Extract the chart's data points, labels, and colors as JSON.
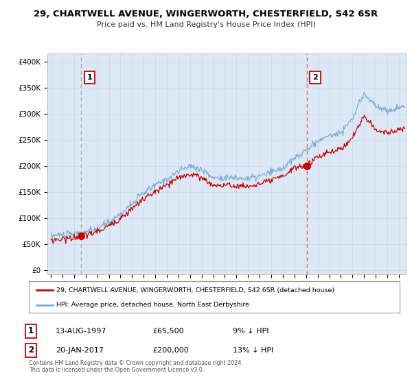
{
  "title_line1": "29, CHARTWELL AVENUE, WINGERWORTH, CHESTERFIELD, S42 6SR",
  "title_line2": "Price paid vs. HM Land Registry's House Price Index (HPI)",
  "yticks": [
    0,
    50000,
    100000,
    150000,
    200000,
    250000,
    300000,
    350000,
    400000
  ],
  "ytick_labels": [
    "£0",
    "£50K",
    "£100K",
    "£150K",
    "£200K",
    "£250K",
    "£300K",
    "£350K",
    "£400K"
  ],
  "ylim": [
    -8000,
    415000
  ],
  "xlim_start": 1994.7,
  "xlim_end": 2025.6,
  "purchase1_date": 1997.617,
  "purchase1_price": 65500,
  "purchase1_label": "1",
  "purchase2_date": 2017.055,
  "purchase2_price": 200000,
  "purchase2_label": "2",
  "legend_line1": "29, CHARTWELL AVENUE, WINGERWORTH, CHESTERFIELD, S42 6SR (detached house)",
  "legend_line2": "HPI: Average price, detached house, North East Derbyshire",
  "table_row1_label": "1",
  "table_row1_date": "13-AUG-1997",
  "table_row1_price": "£65,500",
  "table_row1_hpi": "9% ↓ HPI",
  "table_row2_label": "2",
  "table_row2_date": "20-JAN-2017",
  "table_row2_price": "£200,000",
  "table_row2_hpi": "13% ↓ HPI",
  "footer": "Contains HM Land Registry data © Crown copyright and database right 2024.\nThis data is licensed under the Open Government Licence v3.0.",
  "hpi_color": "#7aadd4",
  "price_color": "#cc0000",
  "dashed1_color": "#aaaaaa",
  "dashed2_color": "#ff6666",
  "plot_bg": "#dce8f5",
  "fig_bg": "#ffffff",
  "grid_color": "#c8d8e8"
}
